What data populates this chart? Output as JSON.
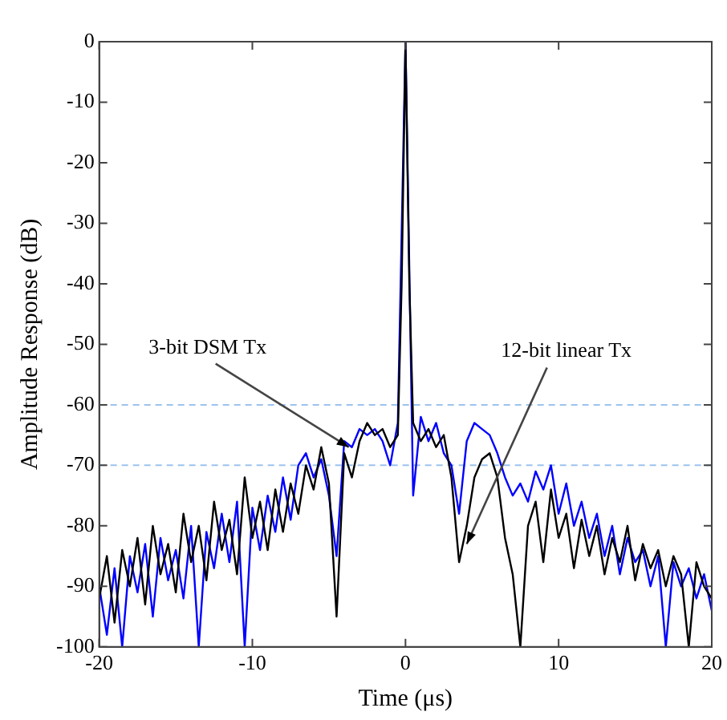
{
  "chart_data": {
    "type": "line",
    "xlabel": "Time (μs)",
    "ylabel": "Amplitude Response (dB)",
    "x": [
      -20,
      -19.5,
      -19,
      -18.5,
      -18,
      -17.5,
      -17,
      -16.5,
      -16,
      -15.5,
      -15,
      -14.5,
      -14,
      -13.5,
      -13,
      -12.5,
      -12,
      -11.5,
      -11,
      -10.5,
      -10,
      -9.5,
      -9,
      -8.5,
      -8,
      -7.5,
      -7,
      -6.5,
      -6,
      -5.5,
      -5,
      -4.5,
      -4,
      -3.5,
      -3,
      -2.5,
      -2,
      -1.5,
      -1,
      -0.5,
      -0.25,
      0,
      0.25,
      0.5,
      1,
      1.5,
      2,
      2.5,
      3,
      3.5,
      4,
      4.5,
      5,
      5.5,
      6,
      6.5,
      7,
      7.5,
      8,
      8.5,
      9,
      9.5,
      10,
      10.5,
      11,
      11.5,
      12,
      12.5,
      13,
      13.5,
      14,
      14.5,
      15,
      15.5,
      16,
      16.5,
      17,
      17.5,
      18,
      18.5,
      19,
      19.5,
      20
    ],
    "series": [
      {
        "color": "#000000",
        "values": [
          -92,
          -85,
          -96,
          -84,
          -90,
          -82,
          -93,
          -80,
          -88,
          -83,
          -91,
          -78,
          -86,
          -80,
          -89,
          -76,
          -84,
          -79,
          -88,
          -72,
          -82,
          -76,
          -84,
          -74,
          -81,
          -73,
          -78,
          -70,
          -74,
          -67,
          -73,
          -95,
          -68,
          -72,
          -66,
          -63,
          -65,
          -64,
          -67,
          -65,
          -40,
          0,
          -40,
          -63,
          -66,
          -64,
          -67,
          -65,
          -72,
          -86,
          -80,
          -72,
          -69,
          -68,
          -72,
          -82,
          -88,
          -100,
          -80,
          -76,
          -86,
          -74,
          -82,
          -78,
          -87,
          -79,
          -85,
          -80,
          -88,
          -82,
          -86,
          -80,
          -89,
          -83,
          -87,
          -84,
          -90,
          -85,
          -88,
          -100,
          -86,
          -90,
          -92
        ]
      },
      {
        "color": "#0000ff",
        "x": [
          -20,
          -19.5,
          -19,
          -18.5,
          -18,
          -17.5,
          -17,
          -16.5,
          -16,
          -15.5,
          -15,
          -14.5,
          -14,
          -13.5,
          -13,
          -12.5,
          -12,
          -11.5,
          -11,
          -10.5,
          -10,
          -9.5,
          -9,
          -8.5,
          -8,
          -7.5,
          -7,
          -6.5,
          -6,
          -5.5,
          -5,
          -4.5,
          -4,
          -3.5,
          -3,
          -2.5,
          -2,
          -1.5,
          -1,
          -0.5,
          0,
          0.5,
          1,
          1.5,
          2,
          2.5,
          3,
          3.5,
          4,
          4.5,
          5,
          5.5,
          6,
          6.5,
          7,
          7.5,
          8,
          8.5,
          9,
          9.5,
          10,
          10.5,
          11,
          11.5,
          12,
          12.5,
          13,
          13.5,
          14,
          14.5,
          15,
          15.5,
          16,
          16.5,
          17,
          17.5,
          18,
          18.5,
          19,
          19.5,
          20
        ],
        "values": [
          -90,
          -98,
          -87,
          -100,
          -85,
          -91,
          -83,
          -95,
          -82,
          -89,
          -84,
          -92,
          -80,
          -100,
          -81,
          -87,
          -78,
          -86,
          -76,
          -100,
          -77,
          -84,
          -75,
          -81,
          -72,
          -79,
          -70,
          -68,
          -72,
          -69,
          -75,
          -85,
          -66,
          -67,
          -64,
          -65,
          -64,
          -66,
          -70,
          -63,
          0,
          -75,
          -62,
          -66,
          -63,
          -68,
          -70,
          -78,
          -66,
          -63,
          -64,
          -65,
          -68,
          -72,
          -75,
          -73,
          -76,
          -71,
          -74,
          -70,
          -78,
          -73,
          -80,
          -76,
          -82,
          -78,
          -85,
          -80,
          -88,
          -82,
          -86,
          -84,
          -90,
          -85,
          -100,
          -86,
          -90,
          -87,
          -92,
          -88,
          -94
        ]
      }
    ],
    "xlim": [
      -20,
      20
    ],
    "xticks": [
      -20,
      -10,
      0,
      10,
      20
    ],
    "ylim": [
      -100,
      0
    ],
    "yticks": [
      -100,
      -90,
      -80,
      -70,
      -60,
      -50,
      -40,
      -30,
      -20,
      -10,
      0
    ],
    "ref_lines": [
      {
        "axis": "y",
        "value": -60,
        "color": "#9cc3ee",
        "line_style": "dashed"
      },
      {
        "axis": "y",
        "value": -70,
        "color": "#9cc3ee",
        "line_style": "dashed"
      }
    ],
    "annotations": [
      {
        "text": "3-bit DSM Tx",
        "x": -3.7,
        "y": -67
      },
      {
        "text": "12-bit linear Tx",
        "x": 4,
        "y": -83
      }
    ],
    "grid": false,
    "legend": false,
    "marker": "none",
    "line_style": "solid"
  }
}
